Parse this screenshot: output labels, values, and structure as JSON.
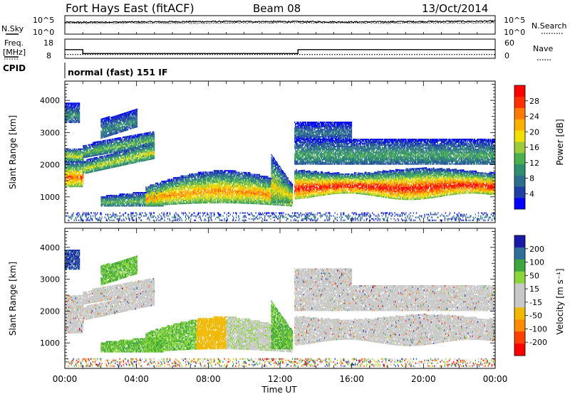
{
  "header": {
    "station": "Fort Hays East (fitACF)",
    "beam": "Beam 08",
    "date": "13/Oct/2014"
  },
  "scan_info": "normal (fast) 151 IF",
  "xlabel": "Time UT",
  "colors": {
    "power": [
      "#0000ff",
      "#1f3fa8",
      "#2d6e8e",
      "#2f8f6e",
      "#4caf50",
      "#9ccc3c",
      "#f4e000",
      "#ffb000",
      "#ff7a00",
      "#ff3000",
      "#ff0000"
    ],
    "velocity": [
      "#1a1aa8",
      "#2f6f9a",
      "#3fa53f",
      "#88d63a",
      "#c8c8c8",
      "#c8c8c8",
      "#f0b800",
      "#ff8a00",
      "#ff4000",
      "#ff0000"
    ]
  },
  "chart_data": [
    {
      "type": "line",
      "name": "noise-panel",
      "left_label": "N.Sky",
      "right_label": "N.Search",
      "left_ticks": [
        "10^5",
        "10^0"
      ],
      "right_ticks": [
        "10^5",
        "10^0"
      ],
      "x": [
        "00:00",
        "04:00",
        "08:00",
        "12:00",
        "16:00",
        "20:00",
        "00:00"
      ],
      "series": [
        {
          "values": [
            3.2,
            3.3,
            3.4,
            3.4,
            3.3,
            3.4,
            3.5
          ]
        },
        {
          "values": [
            2.9,
            3.0,
            3.0,
            3.1,
            3.0,
            3.0,
            3.1
          ]
        }
      ],
      "ylim": [
        0,
        5
      ]
    },
    {
      "type": "line",
      "name": "freq-panel",
      "left_label_lines": [
        "Freq.",
        "[MHz]"
      ],
      "right_label": "Nave",
      "extra_label": "CPID",
      "left_ticks": [
        "18",
        "8"
      ],
      "right_ticks": [
        "60",
        "0"
      ],
      "series": [
        {
          "values_hours": [
            0,
            1,
            1,
            13,
            13,
            24
          ],
          "values": [
            12.5,
            12.5,
            10.5,
            10.5,
            12.5,
            12.5
          ]
        },
        {
          "values_hours": [
            0,
            24
          ],
          "values": [
            10.0,
            10.0
          ]
        }
      ],
      "ylim": [
        8,
        18
      ]
    },
    {
      "type": "heatmap",
      "name": "power-panel",
      "ylabel": "Slant Range [km]",
      "yticks": [
        1000,
        2000,
        3000,
        4000
      ],
      "ylim": [
        200,
        4600
      ],
      "xlim_hours": [
        0,
        24
      ],
      "xticks": [
        "00:00",
        "04:00",
        "08:00",
        "12:00",
        "16:00",
        "20:00",
        "00:00"
      ],
      "colorbar_label": "Power [dB]",
      "colorbar_ticks": [
        4,
        8,
        12,
        16,
        20,
        24,
        28
      ],
      "colorbar_range": [
        0,
        32
      ]
    },
    {
      "type": "heatmap",
      "name": "velocity-panel",
      "ylabel": "Slant Range [km]",
      "yticks": [
        1000,
        2000,
        3000,
        4000
      ],
      "ylim": [
        200,
        4600
      ],
      "xlim_hours": [
        0,
        24
      ],
      "xticks": [
        "00:00",
        "04:00",
        "08:00",
        "12:00",
        "16:00",
        "20:00",
        "00:00"
      ],
      "colorbar_label": "Velocity [m s⁻¹]",
      "colorbar_ticks": [
        "200",
        "100",
        "50",
        "15",
        "-15",
        "-50",
        "-100",
        "-200"
      ]
    }
  ]
}
